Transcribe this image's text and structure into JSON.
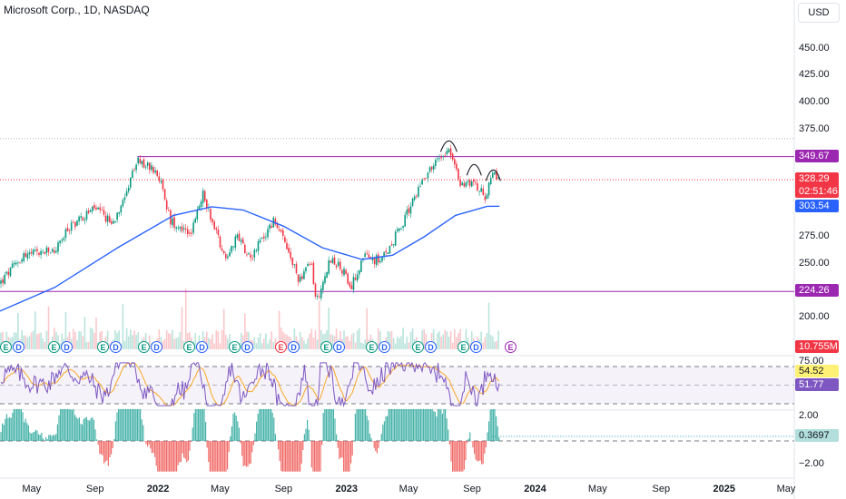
{
  "header": {
    "title": "Microsoft Corp., 1D, NASDAQ",
    "currency": "USD"
  },
  "colors": {
    "up": "#089981",
    "down": "#f23645",
    "ma": "#2962ff",
    "level": "#9c27b0",
    "rsi": "#7e57c2",
    "rsi_ma": "#f9a825",
    "macd_pos": "#26a69a",
    "macd_neg": "#ef5350"
  },
  "chart_data": [
    {
      "type": "candlestick",
      "title": "Microsoft Corp., 1D, NASDAQ",
      "x_ticks": [
        "May",
        "Sep",
        "2022",
        "May",
        "Sep",
        "2023",
        "May",
        "Sep",
        "2024",
        "May",
        "Sep",
        "2025",
        "May"
      ],
      "y_ticks": [
        "450.00",
        "425.00",
        "400.00",
        "375.00",
        "350.00",
        "275.00",
        "250.00",
        "225.00",
        "200.00"
      ],
      "ylim": [
        195,
        465
      ],
      "levels": [
        {
          "label": "349.67",
          "value": 349.67,
          "color": "#9c27b0"
        },
        {
          "label": "224.26",
          "value": 224.26,
          "color": "#9c27b0"
        }
      ],
      "last_price": {
        "label": "328.29",
        "countdown": "02:51:46",
        "value": 328.29
      },
      "moving_average": {
        "label": "303.54",
        "value": 303.54
      },
      "resistance_dotted": 366.5,
      "price_path": [
        [
          "2021-03-01",
          232
        ],
        [
          "2021-04-15",
          258
        ],
        [
          "2021-06-15",
          262
        ],
        [
          "2021-07-15",
          285
        ],
        [
          "2021-08-31",
          302
        ],
        [
          "2021-10-05",
          287
        ],
        [
          "2021-11-22",
          345
        ],
        [
          "2021-12-31",
          336
        ],
        [
          "2022-01-25",
          290
        ],
        [
          "2022-03-07",
          279
        ],
        [
          "2022-03-29",
          315
        ],
        [
          "2022-05-12",
          255
        ],
        [
          "2022-06-01",
          275
        ],
        [
          "2022-06-30",
          257
        ],
        [
          "2022-08-15",
          291
        ],
        [
          "2022-09-30",
          236
        ],
        [
          "2022-10-25",
          250
        ],
        [
          "2022-11-03",
          214
        ],
        [
          "2022-12-01",
          255
        ],
        [
          "2022-12-31",
          240
        ],
        [
          "2023-01-05",
          222
        ],
        [
          "2023-02-01",
          256
        ],
        [
          "2023-03-10",
          253
        ],
        [
          "2023-04-20",
          288
        ],
        [
          "2023-05-30",
          331
        ],
        [
          "2023-07-18",
          359
        ],
        [
          "2023-08-10",
          322
        ],
        [
          "2023-08-31",
          328
        ],
        [
          "2023-09-26",
          313
        ],
        [
          "2023-10-12",
          332
        ],
        [
          "2023-10-24",
          328.29
        ]
      ],
      "ma_path": [
        [
          "2021-03-01",
          206
        ],
        [
          "2021-06-15",
          228
        ],
        [
          "2021-10-15",
          265
        ],
        [
          "2022-01-31",
          295
        ],
        [
          "2022-04-15",
          303
        ],
        [
          "2022-06-15",
          300
        ],
        [
          "2022-09-01",
          285
        ],
        [
          "2022-11-15",
          265
        ],
        [
          "2023-01-31",
          254
        ],
        [
          "2023-03-31",
          258
        ],
        [
          "2023-05-31",
          275
        ],
        [
          "2023-07-31",
          295
        ],
        [
          "2023-09-30",
          303.5
        ],
        [
          "2023-10-24",
          303.54
        ]
      ],
      "pattern_arcs": [
        {
          "date": "2023-07-18",
          "value": 366,
          "shape": "head"
        },
        {
          "date": "2023-09-05",
          "value": 344,
          "shape": "shoulder"
        },
        {
          "date": "2023-10-12",
          "value": 339,
          "shape": "shoulder"
        }
      ]
    },
    {
      "type": "bar",
      "title": "Volume",
      "last_value_label": "10.755M",
      "events": [
        "E",
        "D",
        "E",
        "D",
        "E",
        "D",
        "E",
        "D",
        "E",
        "D",
        "E",
        "D",
        "E",
        "D",
        "E",
        "D",
        "E",
        "D",
        "E",
        "D",
        "E",
        "D",
        "E",
        "D",
        "E",
        "D",
        "E"
      ]
    },
    {
      "type": "line",
      "title": "RSI",
      "ylim": [
        25,
        75
      ],
      "y_ticks": [
        "75.00"
      ],
      "bands": [
        70,
        30
      ],
      "series": [
        {
          "label": "54.52",
          "value": 54.52,
          "color": "#f9a825"
        },
        {
          "label": "51.77",
          "value": 51.77,
          "color": "#7e57c2"
        }
      ]
    },
    {
      "type": "bar",
      "title": "MACD",
      "ylim": [
        -2.6,
        2.8
      ],
      "y_ticks": [
        "2.00",
        "−2.00"
      ],
      "last_value_label": "0.3697",
      "last_value": 0.3697
    }
  ]
}
